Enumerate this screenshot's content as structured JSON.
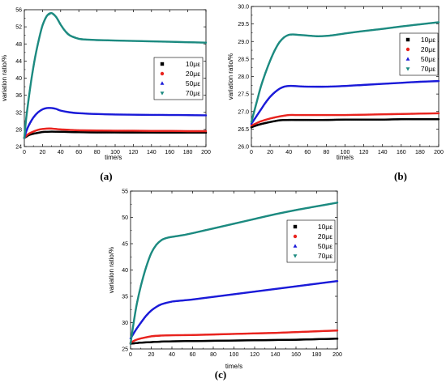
{
  "figure": {
    "panel_labels": [
      "(a)",
      "(b)",
      "(c)"
    ]
  },
  "chart_data": [
    {
      "type": "line",
      "panel": "(a)",
      "xlabel": "time/s",
      "ylabel": "variation ratio/%",
      "xlim": [
        0,
        200
      ],
      "ylim": [
        24,
        56
      ],
      "xticks": [
        0,
        20,
        40,
        60,
        80,
        100,
        120,
        140,
        160,
        180,
        200
      ],
      "yticks": [
        24,
        28,
        32,
        36,
        40,
        44,
        48,
        52,
        56
      ],
      "legend_position": "right",
      "series": [
        {
          "name": "10με",
          "color": "#000000",
          "marker": "square",
          "x": [
            0,
            2,
            5,
            10,
            15,
            20,
            25,
            30,
            40,
            50,
            60,
            80,
            100,
            120,
            140,
            160,
            180,
            200
          ],
          "y": [
            26.0,
            26.3,
            26.7,
            27.0,
            27.2,
            27.4,
            27.45,
            27.5,
            27.45,
            27.4,
            27.35,
            27.3,
            27.3,
            27.28,
            27.27,
            27.26,
            27.25,
            27.25
          ]
        },
        {
          "name": "20με",
          "color": "#e8231e",
          "marker": "circle",
          "x": [
            0,
            2,
            5,
            10,
            15,
            20,
            25,
            30,
            40,
            50,
            60,
            80,
            100,
            120,
            140,
            160,
            180,
            200
          ],
          "y": [
            26.0,
            26.5,
            27.0,
            27.5,
            27.9,
            28.1,
            28.2,
            28.2,
            28.0,
            27.9,
            27.8,
            27.75,
            27.7,
            27.7,
            27.65,
            27.65,
            27.6,
            27.6
          ]
        },
        {
          "name": "50με",
          "color": "#1a1ad8",
          "marker": "triangle-up",
          "x": [
            0,
            2,
            5,
            10,
            15,
            20,
            25,
            30,
            35,
            40,
            50,
            60,
            80,
            100,
            120,
            140,
            160,
            180,
            200
          ],
          "y": [
            26.0,
            27.5,
            29.0,
            30.8,
            32.0,
            32.7,
            33.0,
            33.0,
            32.8,
            32.4,
            32.0,
            31.8,
            31.6,
            31.5,
            31.45,
            31.4,
            31.38,
            31.35,
            31.3
          ]
        },
        {
          "name": "70με",
          "color": "#1c8a80",
          "marker": "triangle-down",
          "x": [
            0,
            2,
            5,
            8,
            12,
            16,
            20,
            25,
            30,
            35,
            40,
            45,
            50,
            60,
            70,
            80,
            100,
            120,
            140,
            160,
            180,
            200
          ],
          "y": [
            26.0,
            30.5,
            35.5,
            40.0,
            45.0,
            49.0,
            52.3,
            54.6,
            55.2,
            54.3,
            52.5,
            51.0,
            50.0,
            49.2,
            49.0,
            48.9,
            48.8,
            48.7,
            48.6,
            48.5,
            48.4,
            48.3
          ]
        }
      ]
    },
    {
      "type": "line",
      "panel": "(b)",
      "xlabel": "time/s",
      "ylabel": "variation ratio/%",
      "xlim": [
        0,
        200
      ],
      "ylim": [
        26.0,
        30.0
      ],
      "xticks": [
        0,
        20,
        40,
        60,
        80,
        100,
        120,
        140,
        160,
        180,
        200
      ],
      "yticks": [
        26.0,
        26.5,
        27.0,
        27.5,
        28.0,
        28.5,
        29.0,
        29.5,
        30.0
      ],
      "legend_position": "right",
      "series": [
        {
          "name": "10με",
          "color": "#000000",
          "marker": "square",
          "x": [
            0,
            5,
            10,
            20,
            30,
            40,
            50,
            60,
            80,
            100,
            120,
            140,
            160,
            180,
            200
          ],
          "y": [
            26.55,
            26.6,
            26.64,
            26.7,
            26.75,
            26.76,
            26.76,
            26.76,
            26.76,
            26.77,
            26.77,
            26.77,
            26.78,
            26.78,
            26.78
          ]
        },
        {
          "name": "20με",
          "color": "#e8231e",
          "marker": "circle",
          "x": [
            0,
            5,
            10,
            20,
            30,
            40,
            50,
            60,
            80,
            100,
            120,
            140,
            160,
            180,
            200
          ],
          "y": [
            26.6,
            26.66,
            26.72,
            26.8,
            26.86,
            26.9,
            26.9,
            26.9,
            26.9,
            26.9,
            26.91,
            26.92,
            26.93,
            26.94,
            26.95
          ]
        },
        {
          "name": "50με",
          "color": "#1a1ad8",
          "marker": "triangle-up",
          "x": [
            0,
            5,
            10,
            15,
            20,
            25,
            30,
            35,
            40,
            45,
            50,
            60,
            80,
            100,
            120,
            140,
            160,
            180,
            200
          ],
          "y": [
            26.65,
            26.85,
            27.05,
            27.25,
            27.42,
            27.55,
            27.65,
            27.71,
            27.73,
            27.73,
            27.72,
            27.71,
            27.71,
            27.73,
            27.76,
            27.79,
            27.82,
            27.85,
            27.87
          ]
        },
        {
          "name": "70με",
          "color": "#1c8a80",
          "marker": "triangle-down",
          "x": [
            0,
            5,
            10,
            15,
            20,
            25,
            30,
            35,
            40,
            45,
            50,
            60,
            70,
            80,
            90,
            100,
            120,
            140,
            160,
            180,
            200
          ],
          "y": [
            26.7,
            27.2,
            27.7,
            28.1,
            28.45,
            28.75,
            28.98,
            29.12,
            29.19,
            29.2,
            29.19,
            29.17,
            29.15,
            29.16,
            29.19,
            29.23,
            29.3,
            29.36,
            29.43,
            29.49,
            29.55
          ]
        }
      ]
    },
    {
      "type": "line",
      "panel": "(c)",
      "xlabel": "time/s",
      "ylabel": "variation ratio/%",
      "xlim": [
        0,
        200
      ],
      "ylim": [
        25,
        55
      ],
      "xticks": [
        0,
        20,
        40,
        60,
        80,
        100,
        120,
        140,
        160,
        180,
        200
      ],
      "yticks": [
        25,
        30,
        35,
        40,
        45,
        50,
        55
      ],
      "legend_position": "right",
      "series": [
        {
          "name": "10με",
          "color": "#000000",
          "marker": "square",
          "x": [
            0,
            5,
            10,
            20,
            30,
            40,
            60,
            80,
            100,
            120,
            140,
            160,
            180,
            200
          ],
          "y": [
            26.0,
            26.1,
            26.2,
            26.3,
            26.4,
            26.45,
            26.5,
            26.55,
            26.6,
            26.65,
            26.7,
            26.75,
            26.85,
            26.95
          ]
        },
        {
          "name": "20με",
          "color": "#e8231e",
          "marker": "circle",
          "x": [
            0,
            5,
            10,
            20,
            30,
            40,
            60,
            80,
            100,
            120,
            140,
            160,
            180,
            200
          ],
          "y": [
            26.2,
            26.7,
            27.0,
            27.4,
            27.55,
            27.6,
            27.65,
            27.75,
            27.85,
            27.95,
            28.05,
            28.2,
            28.35,
            28.5
          ]
        },
        {
          "name": "50με",
          "color": "#1a1ad8",
          "marker": "triangle-up",
          "x": [
            0,
            5,
            10,
            15,
            20,
            25,
            30,
            40,
            50,
            60,
            80,
            100,
            120,
            140,
            160,
            180,
            200
          ],
          "y": [
            27.0,
            28.6,
            30.0,
            31.3,
            32.3,
            33.0,
            33.5,
            34.0,
            34.2,
            34.4,
            34.9,
            35.4,
            35.9,
            36.4,
            36.9,
            37.4,
            37.9
          ]
        },
        {
          "name": "70με",
          "color": "#1c8a80",
          "marker": "triangle-down",
          "x": [
            0,
            3,
            6,
            10,
            15,
            20,
            25,
            30,
            35,
            40,
            50,
            60,
            80,
            100,
            120,
            140,
            160,
            180,
            200
          ],
          "y": [
            26.0,
            30.0,
            33.5,
            37.0,
            40.5,
            43.2,
            44.8,
            45.7,
            46.1,
            46.3,
            46.6,
            47.0,
            47.9,
            48.8,
            49.7,
            50.6,
            51.4,
            52.1,
            52.8
          ]
        }
      ]
    }
  ]
}
